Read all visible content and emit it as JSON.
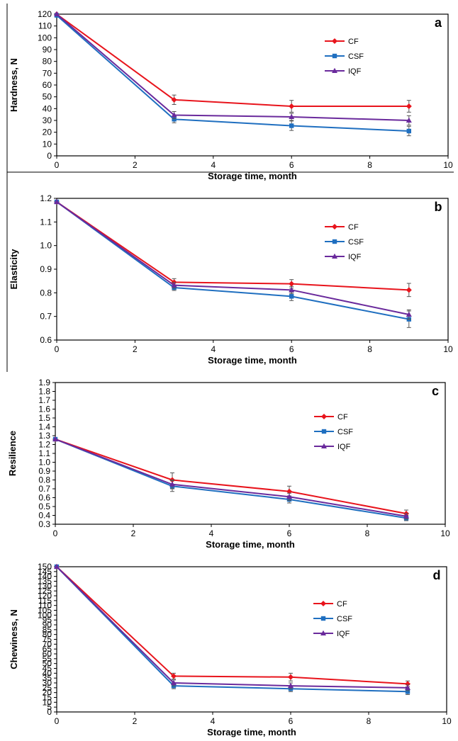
{
  "colors": {
    "CF": "#e8141c",
    "CSF": "#1f6fc0",
    "IQF": "#6a2a9c"
  },
  "chart_data": [
    {
      "type": "line",
      "panel_label": "a",
      "xlabel": "Storage time, month",
      "ylabel": "Hardness, N",
      "xlim": [
        0,
        10
      ],
      "ylim": [
        0,
        120
      ],
      "xticks": [
        0,
        2,
        4,
        6,
        8,
        10
      ],
      "yticks": [
        0,
        10,
        20,
        30,
        40,
        50,
        60,
        70,
        80,
        90,
        100,
        110,
        120
      ],
      "ytick_decimals": 0,
      "legend_position": "right",
      "x": [
        0,
        3,
        6,
        9
      ],
      "series": [
        {
          "name": "CF",
          "marker": "diamond",
          "values": [
            120,
            47.5,
            42,
            42
          ],
          "errors": [
            0,
            4,
            5,
            5
          ]
        },
        {
          "name": "CSF",
          "marker": "square",
          "values": [
            119,
            31,
            25.5,
            21
          ],
          "errors": [
            0,
            3,
            4,
            4
          ]
        },
        {
          "name": "IQF",
          "marker": "triangle",
          "values": [
            120,
            34.5,
            33,
            30
          ],
          "errors": [
            0,
            3,
            3,
            4
          ]
        }
      ]
    },
    {
      "type": "line",
      "panel_label": "b",
      "xlabel": "Storage time, month",
      "ylabel": "Elasticity",
      "xlim": [
        0,
        10
      ],
      "ylim": [
        0.6,
        1.2
      ],
      "xticks": [
        0,
        2,
        4,
        6,
        8,
        10
      ],
      "yticks": [
        0.6,
        0.7,
        0.8,
        0.9,
        1.0,
        1.1,
        1.2
      ],
      "ytick_decimals": 1,
      "legend_position": "right",
      "x": [
        0,
        3,
        6,
        9
      ],
      "series": [
        {
          "name": "CF",
          "marker": "diamond",
          "values": [
            1.185,
            0.845,
            0.838,
            0.812
          ],
          "errors": [
            0,
            0.015,
            0.018,
            0.028
          ]
        },
        {
          "name": "CSF",
          "marker": "square",
          "values": [
            1.185,
            0.822,
            0.785,
            0.688
          ],
          "errors": [
            0,
            0.012,
            0.018,
            0.035
          ]
        },
        {
          "name": "IQF",
          "marker": "triangle",
          "values": [
            1.185,
            0.832,
            0.812,
            0.708
          ],
          "errors": [
            0,
            0.012,
            0.015,
            0.02
          ]
        }
      ]
    },
    {
      "type": "line",
      "panel_label": "c",
      "xlabel": "Storage time, month",
      "ylabel": "Resilience",
      "xlim": [
        0,
        10
      ],
      "ylim": [
        0.3,
        1.9
      ],
      "xticks": [
        0,
        2,
        4,
        6,
        8,
        10
      ],
      "yticks": [
        0.3,
        0.4,
        0.5,
        0.6,
        0.7,
        0.8,
        0.9,
        1.0,
        1.1,
        1.2,
        1.3,
        1.4,
        1.5,
        1.6,
        1.7,
        1.8,
        1.9
      ],
      "ytick_decimals": 1,
      "legend_position": "right",
      "x": [
        0,
        3,
        6,
        9
      ],
      "series": [
        {
          "name": "CF",
          "marker": "diamond",
          "values": [
            1.26,
            0.8,
            0.67,
            0.42
          ],
          "errors": [
            0,
            0.08,
            0.06,
            0.04
          ]
        },
        {
          "name": "CSF",
          "marker": "square",
          "values": [
            1.26,
            0.73,
            0.58,
            0.37
          ],
          "errors": [
            0,
            0.06,
            0.04,
            0.03
          ]
        },
        {
          "name": "IQF",
          "marker": "triangle",
          "values": [
            1.26,
            0.75,
            0.61,
            0.39
          ],
          "errors": [
            0,
            0.05,
            0.04,
            0.03
          ]
        }
      ]
    },
    {
      "type": "line",
      "panel_label": "d",
      "xlabel": "Storage time, month",
      "ylabel": "Chewiness, N",
      "xlim": [
        0,
        10
      ],
      "ylim": [
        0,
        150
      ],
      "xticks": [
        0,
        2,
        4,
        6,
        8,
        10
      ],
      "yticks": [
        0,
        5,
        10,
        15,
        20,
        25,
        30,
        35,
        40,
        45,
        50,
        55,
        60,
        65,
        70,
        75,
        80,
        85,
        90,
        95,
        100,
        105,
        110,
        115,
        120,
        125,
        130,
        135,
        140,
        145,
        150
      ],
      "ytick_decimals": 0,
      "legend_position": "right",
      "x": [
        0,
        3,
        6,
        9
      ],
      "series": [
        {
          "name": "CF",
          "marker": "diamond",
          "values": [
            150,
            37,
            36,
            29
          ],
          "errors": [
            0,
            3,
            4,
            3
          ]
        },
        {
          "name": "CSF",
          "marker": "square",
          "values": [
            150,
            27,
            24,
            21
          ],
          "errors": [
            0,
            3,
            3,
            3
          ]
        },
        {
          "name": "IQF",
          "marker": "triangle",
          "values": [
            150,
            30,
            27,
            25
          ],
          "errors": [
            0,
            3,
            3,
            3
          ]
        }
      ]
    }
  ]
}
